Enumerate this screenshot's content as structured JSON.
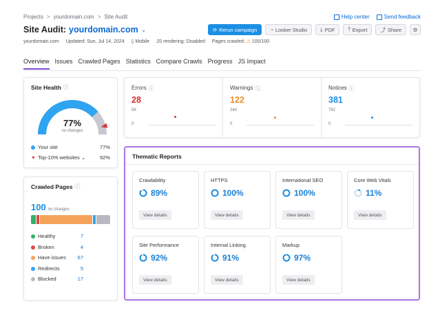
{
  "breadcrumb": {
    "items": [
      "Projects",
      "yourdomain.com",
      "Site Audit"
    ],
    "sep": ">"
  },
  "top_links": {
    "help": "Help center",
    "feedback": "Send feedback"
  },
  "title": {
    "prefix": "Site Audit:",
    "domain": "yourdomain.com",
    "caret": "⌄"
  },
  "toolbar": {
    "rerun": "Rerun campaign",
    "looker": "Looker Studio",
    "pdf": "PDF",
    "export": "Export",
    "share": "Share",
    "gear": "⚙"
  },
  "meta": {
    "domain": "yourdomain.com",
    "updated": "Updated: Sun, Jul 14, 2024",
    "device": "Mobile",
    "js": "JS rendering: Disabled",
    "pages_label": "Pages crawled:",
    "pages_value": "100/100"
  },
  "tabs": [
    "Overview",
    "Issues",
    "Crawled Pages",
    "Statistics",
    "Compare Crawls",
    "Progress",
    "JS Impact"
  ],
  "site_health": {
    "title": "Site Health",
    "value": "77%",
    "value_fraction": 0.77,
    "sub": "no changes",
    "your_site_label": "Your site",
    "your_site_value": "77%",
    "top10_label": "Top-10% websites",
    "top10_value": "92%",
    "colors": {
      "your_site": "#2fa4f0",
      "top10": "#d9302b",
      "track": "#c8c8d0"
    }
  },
  "crawled_pages": {
    "title": "Crawled Pages",
    "total": "100",
    "sub": "no changes",
    "items": [
      {
        "label": "Healthy",
        "value": "7",
        "color": "#2fb36a"
      },
      {
        "label": "Broken",
        "value": "4",
        "color": "#e04545"
      },
      {
        "label": "Have issues",
        "value": "67",
        "color": "#f5a25a"
      },
      {
        "label": "Redirects",
        "value": "5",
        "color": "#2fa4f0"
      },
      {
        "label": "Blocked",
        "value": "17",
        "color": "#b8b8c2"
      }
    ]
  },
  "metrics": [
    {
      "label": "Errors",
      "value": "28",
      "color": "#d9302b",
      "tick_top": "56",
      "tick_bottom": "0"
    },
    {
      "label": "Warnings",
      "value": "122",
      "color": "#f08c2e",
      "tick_top": "244",
      "tick_bottom": "0"
    },
    {
      "label": "Notices",
      "value": "381",
      "color": "#1a8fe3",
      "tick_top": "762",
      "tick_bottom": "0"
    }
  ],
  "thematic": {
    "title": "Thematic Reports",
    "view_label": "View details",
    "reports": [
      {
        "name": "Crawlability",
        "value": "89%",
        "pct": 89
      },
      {
        "name": "HTTPS",
        "value": "100%",
        "pct": 100
      },
      {
        "name": "International SEO",
        "value": "100%",
        "pct": 100
      },
      {
        "name": "Core Web Vitals",
        "value": "11%",
        "pct": 11
      },
      {
        "name": "Site Performance",
        "value": "92%",
        "pct": 92
      },
      {
        "name": "Internal Linking",
        "value": "91%",
        "pct": 91
      },
      {
        "name": "Markup",
        "value": "97%",
        "pct": 97
      }
    ]
  },
  "colors": {
    "accent_blue": "#1a8fe3",
    "highlight_purple": "#a974e6",
    "tab_active": "#7d4bd6"
  }
}
